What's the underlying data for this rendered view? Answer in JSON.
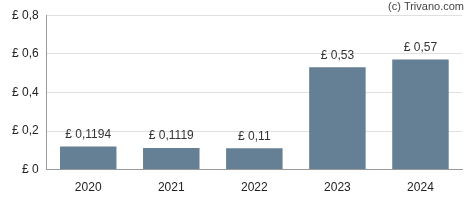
{
  "chart_data": {
    "type": "bar",
    "annotations": [
      "(c) Trivano.com"
    ],
    "categories": [
      "2020",
      "2021",
      "2022",
      "2023",
      "2024"
    ],
    "values": [
      0.1194,
      0.1119,
      0.11,
      0.53,
      0.57
    ],
    "value_labels": [
      "£ 0,1194",
      "£ 0,1119",
      "£ 0,11",
      "£ 0,53",
      "£ 0,57"
    ],
    "color": "#657f94",
    "ylim": [
      0,
      0.8
    ],
    "yticks": [
      {
        "value": 0,
        "label": "£ 0"
      },
      {
        "value": 0.2,
        "label": "£ 0,2"
      },
      {
        "value": 0.4,
        "label": "£ 0,4"
      },
      {
        "value": 0.6,
        "label": "£ 0,6"
      },
      {
        "value": 0.8,
        "label": "£ 0,8"
      }
    ],
    "grid": true,
    "data_labels": true
  }
}
